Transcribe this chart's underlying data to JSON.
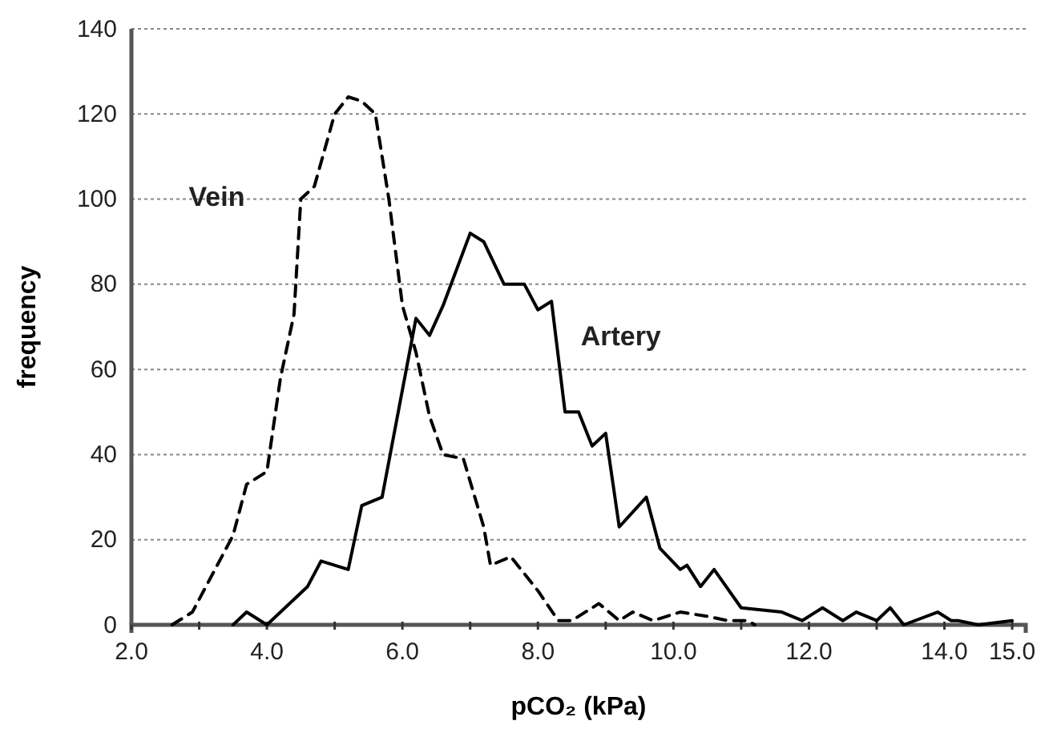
{
  "chart_data": {
    "type": "line",
    "xlabel": "pCO₂ (kPa)",
    "ylabel": "frequency",
    "xlim": [
      2.0,
      15.2
    ],
    "ylim": [
      0,
      140
    ],
    "xticks": [
      {
        "value": 2,
        "label": "2.0"
      },
      {
        "value": 3,
        "label": null
      },
      {
        "value": 4,
        "label": "4.0"
      },
      {
        "value": 5,
        "label": null
      },
      {
        "value": 6,
        "label": "6.0"
      },
      {
        "value": 7,
        "label": null
      },
      {
        "value": 8,
        "label": "8.0"
      },
      {
        "value": 9,
        "label": null
      },
      {
        "value": 10,
        "label": "10.0"
      },
      {
        "value": 11,
        "label": null
      },
      {
        "value": 12,
        "label": "12.0"
      },
      {
        "value": 13,
        "label": null
      },
      {
        "value": 14,
        "label": "14.0"
      },
      {
        "value": 15,
        "label": "15.0"
      }
    ],
    "yticks": [
      0,
      20,
      40,
      60,
      80,
      100,
      120,
      140
    ],
    "grid": "y",
    "legend": false,
    "marker": "none",
    "series": [
      {
        "name": "Vein",
        "color": "#000000",
        "line_style": "dashed",
        "x": [
          2.6,
          2.9,
          3.5,
          3.7,
          4.0,
          4.2,
          4.4,
          4.5,
          4.7,
          5.0,
          5.2,
          5.4,
          5.6,
          5.8,
          6.0,
          6.2,
          6.4,
          6.6,
          6.9,
          7.2,
          7.3,
          7.6,
          8.0,
          8.3,
          8.5,
          8.9,
          9.2,
          9.4,
          9.7,
          10.1,
          10.5,
          10.8,
          11.1,
          11.2
        ],
        "values": [
          0,
          3,
          21,
          33,
          36,
          58,
          73,
          100,
          103,
          120,
          124,
          123,
          120,
          100,
          75,
          64,
          49,
          40,
          39,
          23,
          14,
          16,
          8,
          1,
          1,
          5,
          1,
          3,
          1,
          3,
          2,
          1,
          1,
          0
        ]
      },
      {
        "name": "Artery",
        "color": "#000000",
        "line_style": "solid",
        "x": [
          3.5,
          3.7,
          4.0,
          4.6,
          4.8,
          5.2,
          5.4,
          5.7,
          6.2,
          6.4,
          6.6,
          7.0,
          7.2,
          7.5,
          7.8,
          8.0,
          8.2,
          8.4,
          8.6,
          8.8,
          9.0,
          9.2,
          9.6,
          9.8,
          10.1,
          10.2,
          10.4,
          10.6,
          11.0,
          11.6,
          11.9,
          12.2,
          12.5,
          12.7,
          13.0,
          13.2,
          13.4,
          13.9,
          14.1,
          14.2,
          14.5,
          15.0
        ],
        "values": [
          0,
          3,
          0,
          9,
          15,
          13,
          28,
          30,
          72,
          68,
          75,
          92,
          90,
          80,
          80,
          74,
          76,
          50,
          50,
          42,
          45,
          23,
          30,
          18,
          13,
          14,
          9,
          13,
          4,
          3,
          1,
          4,
          1,
          3,
          1,
          4,
          0,
          3,
          1,
          1,
          0,
          1
        ]
      }
    ]
  }
}
